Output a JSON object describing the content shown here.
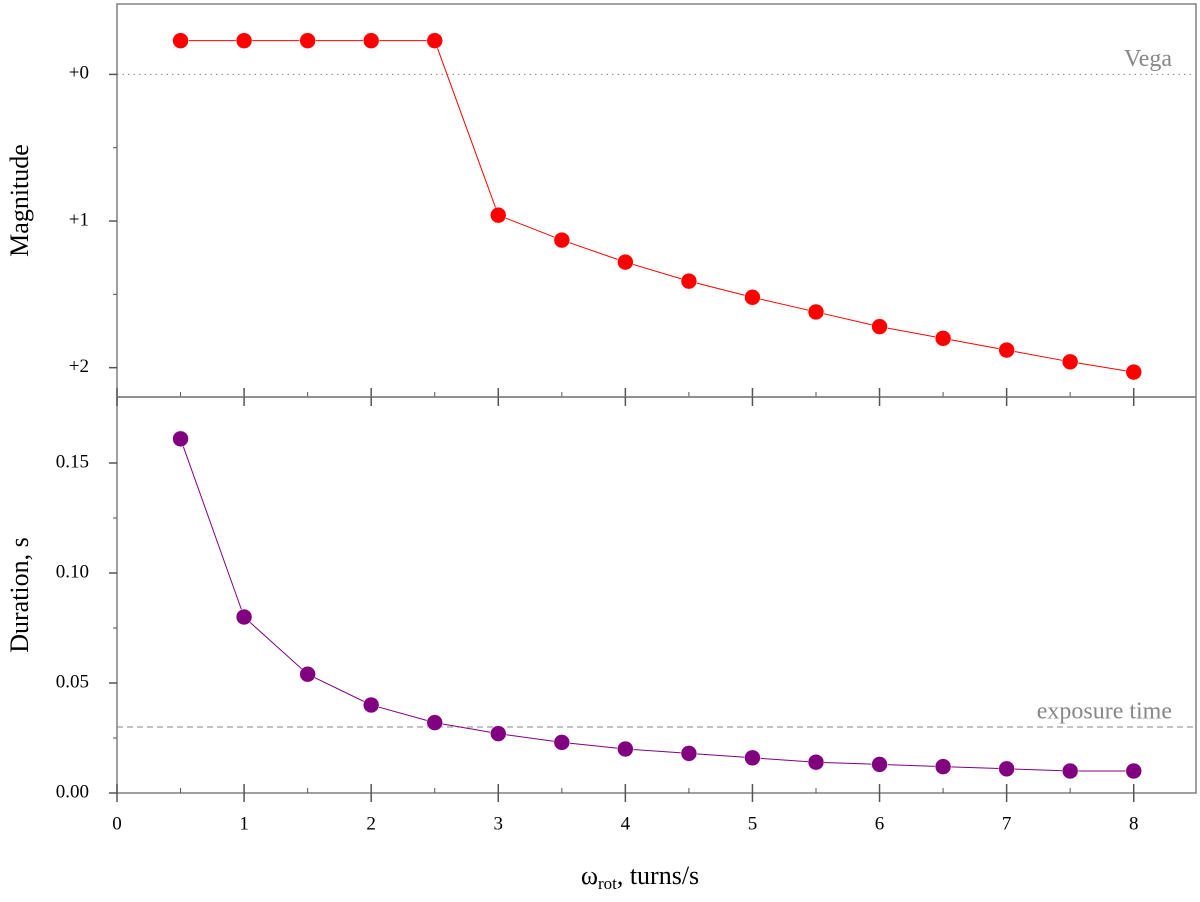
{
  "chart_data": [
    {
      "type": "line",
      "y_label": "Magnitude",
      "x": [
        0.5,
        1,
        1.5,
        2,
        2.5,
        3,
        3.5,
        4,
        4.5,
        5,
        5.5,
        6,
        6.5,
        7,
        7.5,
        8
      ],
      "series": [
        {
          "name": "Magnitude",
          "color": "#ff0000",
          "values": [
            -0.23,
            -0.23,
            -0.23,
            -0.23,
            -0.23,
            0.96,
            1.13,
            1.28,
            1.41,
            1.52,
            1.62,
            1.72,
            1.8,
            1.88,
            1.96,
            2.03
          ]
        }
      ],
      "xlim": [
        0,
        8.49
      ],
      "xticks": [
        0,
        1,
        2,
        3,
        4,
        5,
        6,
        7,
        8
      ],
      "ylim": [
        2.2,
        -0.48
      ],
      "yticks": [
        {
          "value": 0,
          "label": "+0"
        },
        {
          "value": 1,
          "label": "+1"
        },
        {
          "value": 2,
          "label": "+2"
        }
      ],
      "reference": {
        "value": 0,
        "label": "Vega",
        "style": "dotted"
      }
    },
    {
      "type": "line",
      "y_label": "Duration, s",
      "x_label": {
        "symbol": "ω",
        "subscript": "rot",
        "text": ", turns/s"
      },
      "x": [
        0.5,
        1,
        1.5,
        2,
        2.5,
        3,
        3.5,
        4,
        4.5,
        5,
        5.5,
        6,
        6.5,
        7,
        7.5,
        8
      ],
      "series": [
        {
          "name": "Duration",
          "color": "#800080",
          "values": [
            0.161,
            0.08,
            0.054,
            0.04,
            0.032,
            0.027,
            0.023,
            0.02,
            0.018,
            0.016,
            0.014,
            0.013,
            0.012,
            0.011,
            0.01,
            0.01
          ]
        }
      ],
      "xlim": [
        0,
        8.49
      ],
      "xticks": [
        0,
        1,
        2,
        3,
        4,
        5,
        6,
        7,
        8
      ],
      "ylim": [
        0,
        0.18
      ],
      "yticks": [
        {
          "value": 0,
          "label": "0.00"
        },
        {
          "value": 0.05,
          "label": "0.05"
        },
        {
          "value": 0.1,
          "label": "0.10"
        },
        {
          "value": 0.15,
          "label": "0.15"
        }
      ],
      "reference": {
        "value": 0.03,
        "label": "exposure time",
        "style": "dashed"
      }
    }
  ]
}
